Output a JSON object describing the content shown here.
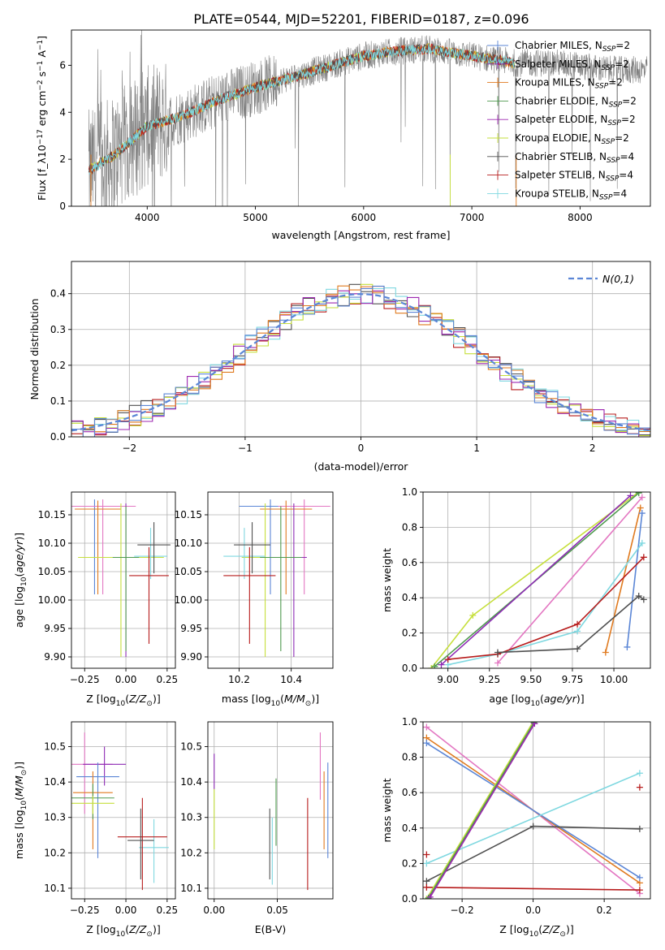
{
  "figure": {
    "title": "PLATE=0544, MJD=52201, FIBERID=0187, z=0.096"
  },
  "colors": {
    "chabrier_miles": "#5b86d6",
    "salpeter_miles": "#8e2bb5",
    "kroupa_miles": "#e07a1f",
    "chabrier_elodie": "#4f9a4f",
    "salpeter_elodie": "#9d27b0",
    "kroupa_elodie": "#c6df3c",
    "chabrier_stelib": "#505050",
    "salpeter_stelib": "#b71c1c",
    "kroupa_stelib": "#7fd8e0",
    "pink": "#e377c2",
    "normal_curve": "#5b86d6"
  },
  "chart_data": [
    {
      "type": "line",
      "id": "spectrum",
      "xlabel": "wavelength [Angstrom, rest frame]",
      "ylabel": "Flux [f_λ10^-17 erg cm^-2 s^-1 A^-1]",
      "xlim": [
        3300,
        8650
      ],
      "ylim": [
        0,
        7.5
      ],
      "xticks": [
        4000,
        5000,
        6000,
        7000,
        8000
      ],
      "yticks": [
        0,
        2,
        4,
        6
      ],
      "legend": {
        "position": "right",
        "entries": [
          {
            "label": "Chabrier MILES, N_SSP=2",
            "color": "chabrier_miles"
          },
          {
            "label": "Salpeter MILES, N_SSP=2",
            "color": "salpeter_miles"
          },
          {
            "label": "Kroupa MILES, N_SSP=2",
            "color": "kroupa_miles"
          },
          {
            "label": "Chabrier ELODIE, N_SSP=2",
            "color": "chabrier_elodie"
          },
          {
            "label": "Salpeter ELODIE, N_SSP=2",
            "color": "salpeter_elodie"
          },
          {
            "label": "Kroupa ELODIE, N_SSP=2",
            "color": "kroupa_elodie"
          },
          {
            "label": "Chabrier STELIB, N_SSP=4",
            "color": "chabrier_stelib"
          },
          {
            "label": "Salpeter STELIB, N_SSP=4",
            "color": "salpeter_stelib"
          },
          {
            "label": "Kroupa STELIB, N_SSP=4",
            "color": "kroupa_stelib"
          }
        ]
      },
      "model_trend": {
        "x": [
          3450,
          3700,
          4000,
          4300,
          4700,
          5100,
          5500,
          6000,
          6300,
          6600,
          7000,
          7400,
          7800,
          8100,
          8300
        ],
        "y": [
          1.5,
          2.2,
          3.4,
          3.8,
          4.6,
          5.2,
          5.7,
          6.4,
          6.6,
          6.7,
          6.4,
          6.1,
          6.1,
          5.9,
          5.8
        ]
      }
    },
    {
      "type": "histogram",
      "id": "residuals",
      "xlabel": "(data-model)/error",
      "ylabel": "Normed distribution",
      "xlim": [
        -2.5,
        2.5
      ],
      "ylim": [
        0,
        0.49
      ],
      "xticks": [
        -2,
        -1,
        0,
        1,
        2
      ],
      "yticks": [
        0.0,
        0.1,
        0.2,
        0.3,
        0.4
      ],
      "grid": true,
      "bin_width": 0.1,
      "legend": {
        "position": "top-right",
        "entries": [
          {
            "label": "N(0,1)",
            "color": "normal_curve"
          }
        ]
      }
    },
    {
      "type": "scatter",
      "id": "age_vs_Z",
      "xlabel": "Z [log10(Z/Z⊙)]",
      "ylabel": "age  [log10(age/yr)]",
      "xlim": [
        -0.33,
        0.3
      ],
      "ylim": [
        9.88,
        10.19
      ],
      "xticks": [
        -0.25,
        0.0,
        0.25
      ],
      "xticklabels": [
        "−0.25",
        "0.00",
        "0.25"
      ],
      "yticks": [
        9.9,
        9.95,
        10.0,
        10.05,
        10.1,
        10.15
      ],
      "grid": true,
      "points": [
        {
          "x": -0.19,
          "y": 10.165,
          "xerr": 0.12,
          "yerr": [
            0.155,
            0.012
          ],
          "color": "chabrier_miles"
        },
        {
          "x": -0.14,
          "y": 10.165,
          "xerr": 0.2,
          "yerr": [
            0.155,
            0.012
          ],
          "color": "pink"
        },
        {
          "x": -0.17,
          "y": 10.16,
          "xerr": 0.14,
          "yerr": [
            0.15,
            0.015
          ],
          "color": "kroupa_miles"
        },
        {
          "x": 0.0,
          "y": 10.075,
          "xerr": 0.2,
          "yerr": [
            0.175,
            0.095
          ],
          "color": "salpeter_miles"
        },
        {
          "x": -0.03,
          "y": 10.075,
          "xerr": 0.26,
          "yerr": [
            0.175,
            0.095
          ],
          "color": "kroupa_elodie"
        },
        {
          "x": 0.0,
          "y": 10.075,
          "xerr": 0.08,
          "yerr": [
            0.165,
            0.09
          ],
          "color": "chabrier_elodie"
        },
        {
          "x": 0.15,
          "y": 10.077,
          "xerr": 0.1,
          "yerr": [
            0.04,
            0.05
          ],
          "color": "kroupa_stelib"
        },
        {
          "x": 0.17,
          "y": 10.097,
          "xerr": 0.1,
          "yerr": [
            0.05,
            0.04
          ],
          "color": "chabrier_stelib"
        },
        {
          "x": 0.14,
          "y": 10.043,
          "xerr": 0.12,
          "yerr": [
            0.12,
            0.05
          ],
          "color": "salpeter_stelib"
        }
      ]
    },
    {
      "type": "scatter",
      "id": "age_vs_mass",
      "xlabel": "mass [log10(M/M⊙)]",
      "ylabel": "",
      "xlim": [
        10.08,
        10.56
      ],
      "ylim": [
        9.88,
        10.19
      ],
      "xticks": [
        10.2,
        10.4
      ],
      "yticks": [
        9.9,
        9.95,
        10.0,
        10.05,
        10.1,
        10.15
      ],
      "grid": true,
      "points": [
        {
          "x": 10.32,
          "y": 10.165,
          "xerr": 0.12,
          "yerr": [
            0.155,
            0.012
          ],
          "color": "chabrier_miles"
        },
        {
          "x": 10.45,
          "y": 10.165,
          "xerr": 0.1,
          "yerr": [
            0.155,
            0.012
          ],
          "color": "pink"
        },
        {
          "x": 10.38,
          "y": 10.16,
          "xerr": 0.1,
          "yerr": [
            0.15,
            0.015
          ],
          "color": "kroupa_miles"
        },
        {
          "x": 10.41,
          "y": 10.075,
          "xerr": 0.05,
          "yerr": [
            0.175,
            0.095
          ],
          "color": "salpeter_miles"
        },
        {
          "x": 10.3,
          "y": 10.075,
          "xerr": 0.09,
          "yerr": [
            0.175,
            0.095
          ],
          "color": "kroupa_elodie"
        },
        {
          "x": 10.36,
          "y": 10.075,
          "xerr": 0.08,
          "yerr": [
            0.165,
            0.09
          ],
          "color": "chabrier_elodie"
        },
        {
          "x": 10.22,
          "y": 10.077,
          "xerr": 0.08,
          "yerr": [
            0.04,
            0.05
          ],
          "color": "kroupa_stelib"
        },
        {
          "x": 10.25,
          "y": 10.097,
          "xerr": 0.07,
          "yerr": [
            0.05,
            0.04
          ],
          "color": "chabrier_stelib"
        },
        {
          "x": 10.24,
          "y": 10.043,
          "xerr": 0.1,
          "yerr": [
            0.12,
            0.05
          ],
          "color": "salpeter_stelib"
        }
      ]
    },
    {
      "type": "line",
      "id": "weight_vs_age",
      "xlabel": "age  [log10(age/yr)]",
      "ylabel": "mass weight",
      "xlim": [
        8.85,
        10.22
      ],
      "ylim": [
        0,
        1.0
      ],
      "xticks": [
        9.0,
        9.25,
        9.5,
        9.75,
        10.0
      ],
      "xticklabels": [
        "9.00",
        "9.25",
        "9.50",
        "9.75",
        "10.00"
      ],
      "yticks": [
        0.0,
        0.2,
        0.4,
        0.6,
        0.8,
        1.0
      ],
      "grid": true,
      "series": [
        {
          "color": "kroupa_elodie",
          "x": [
            8.9,
            9.15,
            10.15
          ],
          "y": [
            0.0,
            0.3,
            1.0
          ]
        },
        {
          "color": "chabrier_elodie",
          "x": [
            8.92,
            10.15
          ],
          "y": [
            0.01,
            0.995
          ]
        },
        {
          "color": "salpeter_miles",
          "x": [
            8.96,
            10.1
          ],
          "y": [
            0.02,
            0.98
          ]
        },
        {
          "color": "pink",
          "x": [
            9.3,
            10.17
          ],
          "y": [
            0.03,
            0.97
          ]
        },
        {
          "color": "kroupa_miles",
          "x": [
            9.95,
            10.16
          ],
          "y": [
            0.09,
            0.91
          ]
        },
        {
          "color": "chabrier_miles",
          "x": [
            10.08,
            10.17
          ],
          "y": [
            0.12,
            0.88
          ]
        },
        {
          "color": "kroupa_stelib",
          "x": [
            9.0,
            9.3,
            9.78,
            10.17
          ],
          "y": [
            0.02,
            0.08,
            0.21,
            0.71
          ]
        },
        {
          "color": "salpeter_stelib",
          "x": [
            9.0,
            9.3,
            9.78,
            10.18
          ],
          "y": [
            0.05,
            0.08,
            0.25,
            0.63
          ]
        },
        {
          "color": "chabrier_stelib",
          "x": [
            9.3,
            9.78,
            10.15,
            10.18
          ],
          "y": [
            0.09,
            0.11,
            0.41,
            0.39
          ]
        }
      ]
    },
    {
      "type": "scatter",
      "id": "mass_vs_Z",
      "xlabel": "Z [log10(Z/Z⊙)]",
      "ylabel": "mass [log10(M/M⊙)]",
      "xlim": [
        -0.33,
        0.3
      ],
      "ylim": [
        10.07,
        10.57
      ],
      "xticks": [
        -0.25,
        0.0,
        0.25
      ],
      "xticklabels": [
        "−0.25",
        "0.00",
        "0.25"
      ],
      "yticks": [
        10.1,
        10.2,
        10.3,
        10.4,
        10.5
      ],
      "grid": true,
      "points": [
        {
          "x": -0.25,
          "y": 10.45,
          "xerr": 0.17,
          "yerr": [
            0.14,
            0.09
          ],
          "color": "pink"
        },
        {
          "x": -0.13,
          "y": 10.45,
          "xerr": 0.13,
          "yerr": [
            0.06,
            0.05
          ],
          "color": "salpeter_miles"
        },
        {
          "x": -0.17,
          "y": 10.415,
          "xerr": 0.13,
          "yerr": [
            0.23,
            0.04
          ],
          "color": "chabrier_miles"
        },
        {
          "x": -0.2,
          "y": 10.37,
          "xerr": 0.12,
          "yerr": [
            0.16,
            0.06
          ],
          "color": "kroupa_miles"
        },
        {
          "x": -0.2,
          "y": 10.355,
          "xerr": 0.13,
          "yerr": [
            0.06,
            0.04
          ],
          "color": "chabrier_elodie"
        },
        {
          "x": -0.2,
          "y": 10.34,
          "xerr": 0.13,
          "yerr": [
            0.03,
            0.02
          ],
          "color": "kroupa_elodie"
        },
        {
          "x": 0.17,
          "y": 10.215,
          "xerr": 0.09,
          "yerr": [
            0.1,
            0.08
          ],
          "color": "kroupa_stelib"
        },
        {
          "x": 0.1,
          "y": 10.245,
          "xerr": 0.15,
          "yerr": [
            0.15,
            0.11
          ],
          "color": "salpeter_stelib"
        },
        {
          "x": 0.09,
          "y": 10.235,
          "xerr": 0.08,
          "yerr": [
            0.11,
            0.09
          ],
          "color": "chabrier_stelib"
        }
      ]
    },
    {
      "type": "scatter",
      "id": "mass_vs_ebv",
      "xlabel": "E(B-V)",
      "ylabel": "",
      "xlim": [
        -0.005,
        0.094
      ],
      "ylim": [
        10.07,
        10.57
      ],
      "xticks": [
        0.0,
        0.05
      ],
      "xticklabels": [
        "0.00",
        "0.05"
      ],
      "yticks": [
        10.1,
        10.2,
        10.3,
        10.4,
        10.5
      ],
      "grid": true,
      "points": [
        {
          "x": 0.0,
          "y": 10.45,
          "yerr": [
            0.07,
            0.03
          ],
          "color": "salpeter_miles"
        },
        {
          "x": 0.0,
          "y": 10.32,
          "yerr": [
            0.11,
            0.06
          ],
          "color": "kroupa_elodie"
        },
        {
          "x": 0.044,
          "y": 10.235,
          "yerr": [
            0.11,
            0.09
          ],
          "color": "chabrier_stelib"
        },
        {
          "x": 0.046,
          "y": 10.22,
          "yerr": [
            0.11,
            0.08
          ],
          "color": "kroupa_stelib"
        },
        {
          "x": 0.049,
          "y": 10.3,
          "yerr": [
            0.08,
            0.11
          ],
          "color": "chabrier_elodie"
        },
        {
          "x": 0.074,
          "y": 10.245,
          "yerr": [
            0.15,
            0.11
          ],
          "color": "salpeter_stelib"
        },
        {
          "x": 0.084,
          "y": 10.45,
          "yerr": [
            0.1,
            0.09
          ],
          "color": "pink"
        },
        {
          "x": 0.087,
          "y": 10.37,
          "yerr": [
            0.16,
            0.06
          ],
          "color": "kroupa_miles"
        },
        {
          "x": 0.09,
          "y": 10.415,
          "yerr": [
            0.23,
            0.04
          ],
          "color": "chabrier_miles"
        }
      ]
    },
    {
      "type": "line",
      "id": "weight_vs_Z",
      "xlabel": "Z [log10(Z/Z⊙)]",
      "ylabel": "mass weight",
      "xlim": [
        -0.31,
        0.33
      ],
      "ylim": [
        0,
        1.0
      ],
      "xticks": [
        -0.2,
        0.0,
        0.2
      ],
      "xticklabels": [
        "−0.2",
        "0.0",
        "0.2"
      ],
      "yticks": [
        0.0,
        0.2,
        0.4,
        0.6,
        0.8,
        1.0
      ],
      "grid": true,
      "series": [
        {
          "color": "pink",
          "x": [
            -0.3,
            0.3
          ],
          "y": [
            0.97,
            0.03
          ]
        },
        {
          "color": "kroupa_miles",
          "x": [
            -0.3,
            0.3
          ],
          "y": [
            0.91,
            0.09
          ]
        },
        {
          "color": "chabrier_miles",
          "x": [
            -0.3,
            0.3
          ],
          "y": [
            0.88,
            0.12
          ]
        },
        {
          "color": "kroupa_stelib",
          "x": [
            -0.3,
            0.3
          ],
          "y": [
            0.2,
            0.71
          ]
        },
        {
          "color": "chabrier_stelib",
          "x": [
            -0.3,
            0.0,
            0.3
          ],
          "y": [
            0.1,
            0.41,
            0.395
          ]
        },
        {
          "color": "salpeter_stelib",
          "x": [
            -0.3,
            0.3
          ],
          "y": [
            0.065,
            0.05
          ]
        },
        {
          "color": "kroupa_elodie",
          "x": [
            -0.3,
            0.0
          ],
          "y": [
            0.0,
            1.0
          ]
        },
        {
          "color": "chabrier_elodie",
          "x": [
            -0.295,
            0.002
          ],
          "y": [
            0.005,
            0.995
          ]
        },
        {
          "color": "salpeter_elodie",
          "x": [
            -0.29,
            0.004
          ],
          "y": [
            0.01,
            0.99
          ]
        }
      ],
      "markers": [
        {
          "x": -0.3,
          "y": 0.25,
          "color": "salpeter_stelib"
        },
        {
          "x": 0.3,
          "y": 0.63,
          "color": "salpeter_stelib"
        }
      ]
    }
  ]
}
